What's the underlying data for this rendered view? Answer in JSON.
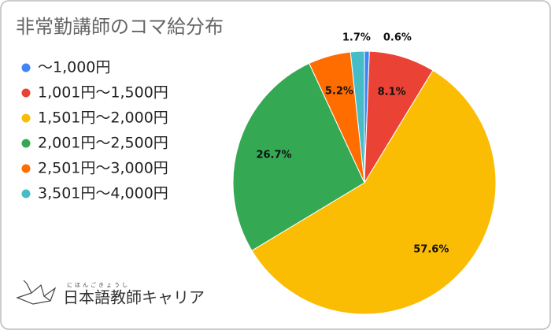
{
  "chart_data": {
    "type": "pie",
    "title": "非常勤講師のコマ給分布",
    "categories": [
      "〜1,000円",
      "1,001円〜1,500円",
      "1,501円〜2,000円",
      "2,001円〜2,500円",
      "2,501円〜3,000円",
      "3,501円〜4,000円"
    ],
    "values": [
      0.6,
      8.1,
      57.6,
      26.7,
      5.2,
      1.7
    ],
    "value_labels": [
      "0.6%",
      "8.1%",
      "57.6%",
      "26.7%",
      "5.2%",
      "1.7%"
    ],
    "colors": [
      "#4285f4",
      "#ea4335",
      "#fbbc04",
      "#34a853",
      "#ff6d01",
      "#46bdc6"
    ],
    "legend": "left"
  },
  "logo": {
    "ruby": "にほんごきょうし",
    "brand": "日本語教師キャリア"
  }
}
